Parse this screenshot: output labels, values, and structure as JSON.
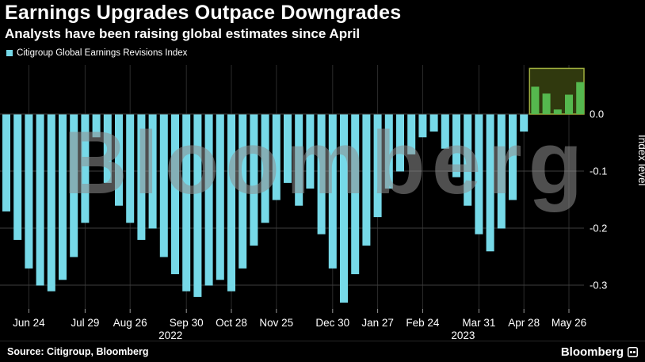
{
  "header": {
    "title": "Earnings Upgrades Outpace Downgrades",
    "subtitle": "Analysts have been raising global estimates since April"
  },
  "legend": {
    "label": "Citigroup Global Earnings Revisions Index",
    "swatch_color": "#76d9e8"
  },
  "watermark": "Bloomberg",
  "chart_data": {
    "type": "bar",
    "title": "Earnings Upgrades Outpace Downgrades",
    "ylabel": "Index level",
    "y_ticks": [
      0,
      -0.1,
      -0.2,
      -0.3
    ],
    "ylim": [
      -0.345,
      0.08
    ],
    "x_tick_labels": [
      "Jun 24",
      "Jul 29",
      "Aug 26",
      "Sep 30",
      "Oct 28",
      "Nov 25",
      "Dec 30",
      "Jan 27",
      "Feb 24",
      "Mar 31",
      "Apr 28",
      "May 26"
    ],
    "x_tick_week_indices": [
      2,
      7,
      11,
      16,
      20,
      24,
      29,
      33,
      37,
      42,
      46,
      50
    ],
    "year_labels": [
      {
        "text": "2022",
        "week_index": 16
      },
      {
        "text": "2023",
        "week_index": 42
      }
    ],
    "series": [
      {
        "name": "Citigroup Global Earnings Revisions Index",
        "values": [
          -0.17,
          -0.22,
          -0.27,
          -0.3,
          -0.31,
          -0.29,
          -0.25,
          -0.19,
          -0.04,
          -0.12,
          -0.16,
          -0.19,
          -0.22,
          -0.2,
          -0.25,
          -0.28,
          -0.31,
          -0.32,
          -0.3,
          -0.29,
          -0.31,
          -0.27,
          -0.23,
          -0.19,
          -0.15,
          -0.12,
          -0.16,
          -0.13,
          -0.21,
          -0.27,
          -0.33,
          -0.28,
          -0.23,
          -0.18,
          -0.13,
          -0.1,
          -0.07,
          -0.04,
          -0.03,
          -0.06,
          -0.11,
          -0.16,
          -0.21,
          -0.24,
          -0.2,
          -0.15,
          -0.03,
          0.048,
          0.036,
          0.008,
          0.034,
          0.056
        ]
      }
    ],
    "highlight_box": {
      "start_week_index": 47
    },
    "colors": {
      "negative_bar": "#76d9e8",
      "positive_bar": "#55b84e",
      "grid": "#3e3e3e",
      "grid_vertical": "#2c2c2c",
      "highlight_fill": "#30390e",
      "highlight_border": "#9fae3e",
      "axis_text": "#ffffff"
    }
  },
  "footer": {
    "source": "Source: Citigroup, Bloomberg",
    "brand": "Bloomberg"
  }
}
